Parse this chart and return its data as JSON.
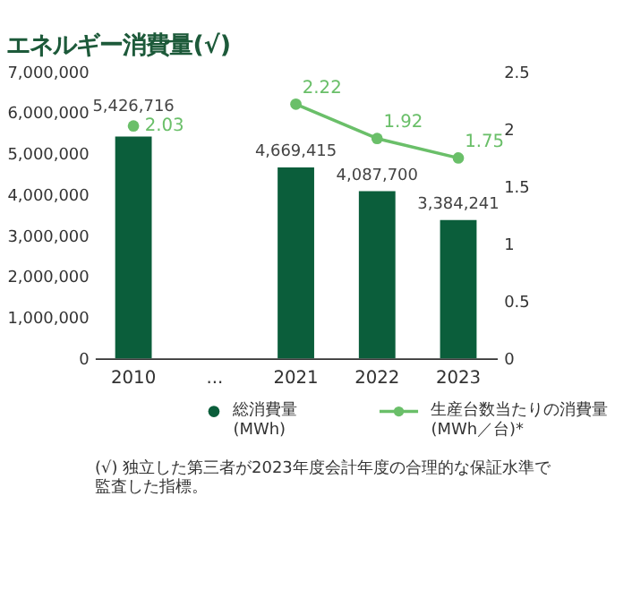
{
  "chart_data": {
    "type": "bar",
    "title": "エネルギー消費量(√)",
    "categories": [
      "2010",
      "...",
      "2021",
      "2022",
      "2023"
    ],
    "series": [
      {
        "name": "総消費量 (MWh)",
        "color": "#0b5e3b",
        "values": [
          5426716,
          null,
          4669415,
          4087700,
          3384241
        ],
        "value_labels": [
          "5,426,716",
          null,
          "4,669,415",
          "4,087,700",
          "3,384,241"
        ]
      },
      {
        "name": "生産台数当たりの消費量 (MWh／台)*",
        "type": "line",
        "axis": "y2",
        "color": "#6abf69",
        "marker": "circle",
        "values": [
          2.03,
          null,
          2.22,
          1.92,
          1.75
        ],
        "value_labels": [
          "2.03",
          null,
          "2.22",
          "1.92",
          "1.75"
        ]
      }
    ],
    "ylim": [
      0,
      7000000
    ],
    "yticks": [
      0,
      {
        "value": 1000000,
        "label": "1,000,000"
      },
      {
        "value": 2000000,
        "label": "2,000,000"
      },
      {
        "value": 3000000,
        "label": "3,000,000"
      },
      {
        "value": 4000000,
        "label": "4,000,000"
      },
      {
        "value": 5000000,
        "label": "5,000,000"
      },
      {
        "value": 6000000,
        "label": "6,000,000"
      },
      {
        "value": 7000000,
        "label": "7,000,000"
      }
    ],
    "y2lim": [
      0,
      2.5
    ],
    "y2ticks": [
      0,
      0.5,
      1,
      1.5,
      2,
      2.5
    ],
    "legend": "bottom",
    "annotations": [
      "(√) 独立した第三者が2023年度会計年度の合理的な保証水準で監査した指標。"
    ]
  }
}
